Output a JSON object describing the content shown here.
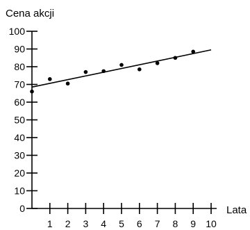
{
  "chart_data": {
    "type": "scatter",
    "title": "",
    "xlabel": "Lata",
    "ylabel": "Cena akcji",
    "xlim": [
      0,
      10
    ],
    "ylim": [
      0,
      100
    ],
    "x_ticks": [
      1,
      2,
      3,
      4,
      5,
      6,
      7,
      8,
      9,
      10
    ],
    "y_ticks": [
      0,
      10,
      20,
      30,
      40,
      50,
      60,
      70,
      80,
      90,
      100
    ],
    "grid": false,
    "points": [
      {
        "x": 0,
        "y": 66
      },
      {
        "x": 1,
        "y": 73
      },
      {
        "x": 2,
        "y": 70.5
      },
      {
        "x": 3,
        "y": 77
      },
      {
        "x": 4,
        "y": 77.5
      },
      {
        "x": 5,
        "y": 81
      },
      {
        "x": 6,
        "y": 78.5
      },
      {
        "x": 7,
        "y": 82
      },
      {
        "x": 8,
        "y": 85
      },
      {
        "x": 9,
        "y": 88.5
      }
    ],
    "trend_line": {
      "x": [
        0,
        10
      ],
      "y": [
        68.5,
        89.5
      ]
    },
    "colors": {
      "marks": "#000000",
      "background": "#ffffff"
    }
  }
}
